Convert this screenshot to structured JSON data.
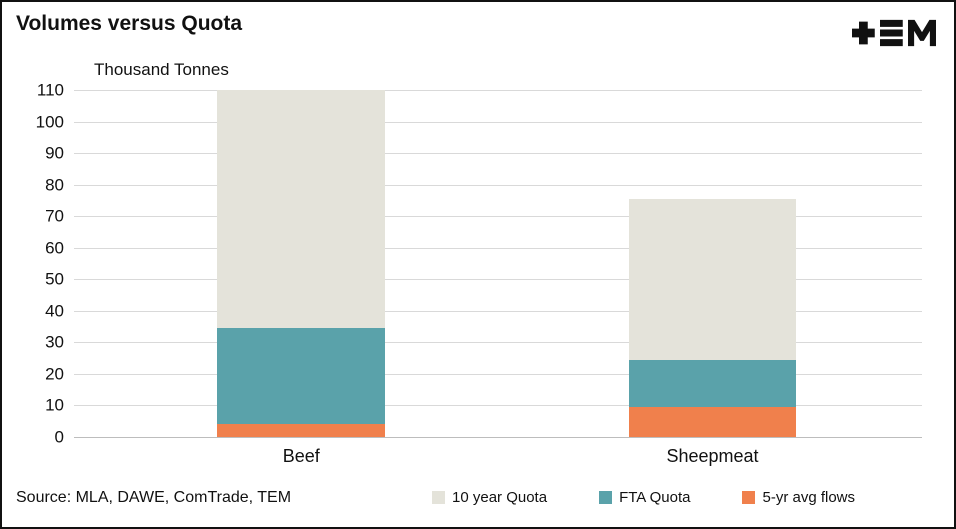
{
  "title": "Volumes versus Quota",
  "y_axis_title": "Thousand Tonnes",
  "source": "Source: MLA, DAWE, ComTrade, TEM",
  "logo_name": "TEM logo",
  "colors": {
    "ten_year_quota": "#e4e3da",
    "fta_quota": "#5aa2aa",
    "avg_flows": "#f0804c",
    "gridline": "#d9d9d9",
    "axis_line": "#bdbdbd",
    "text": "#111111",
    "border": "#111111"
  },
  "chart_data": {
    "type": "bar",
    "stacked": true,
    "title": "Volumes versus Quota",
    "ylabel": "Thousand Tonnes",
    "categories": [
      "Beef",
      "Sheepmeat"
    ],
    "series": [
      {
        "name": "5-yr avg flows",
        "color": "#f0804c",
        "values": [
          4,
          9.5
        ]
      },
      {
        "name": "FTA Quota",
        "color": "#5aa2aa",
        "values": [
          30.5,
          15
        ]
      },
      {
        "name": "10 year Quota",
        "color": "#e4e3da",
        "values": [
          75.5,
          51
        ]
      }
    ],
    "stack_totals": [
      110,
      75.5
    ],
    "ylim": [
      0,
      110
    ],
    "ytick_step": 10,
    "grid": true,
    "legend_order": [
      "10 year Quota",
      "FTA Quota",
      "5-yr avg flows"
    ],
    "legend_position": "bottom",
    "bar_centers_frac": [
      0.268,
      0.753
    ],
    "bar_width_frac": 0.198
  }
}
